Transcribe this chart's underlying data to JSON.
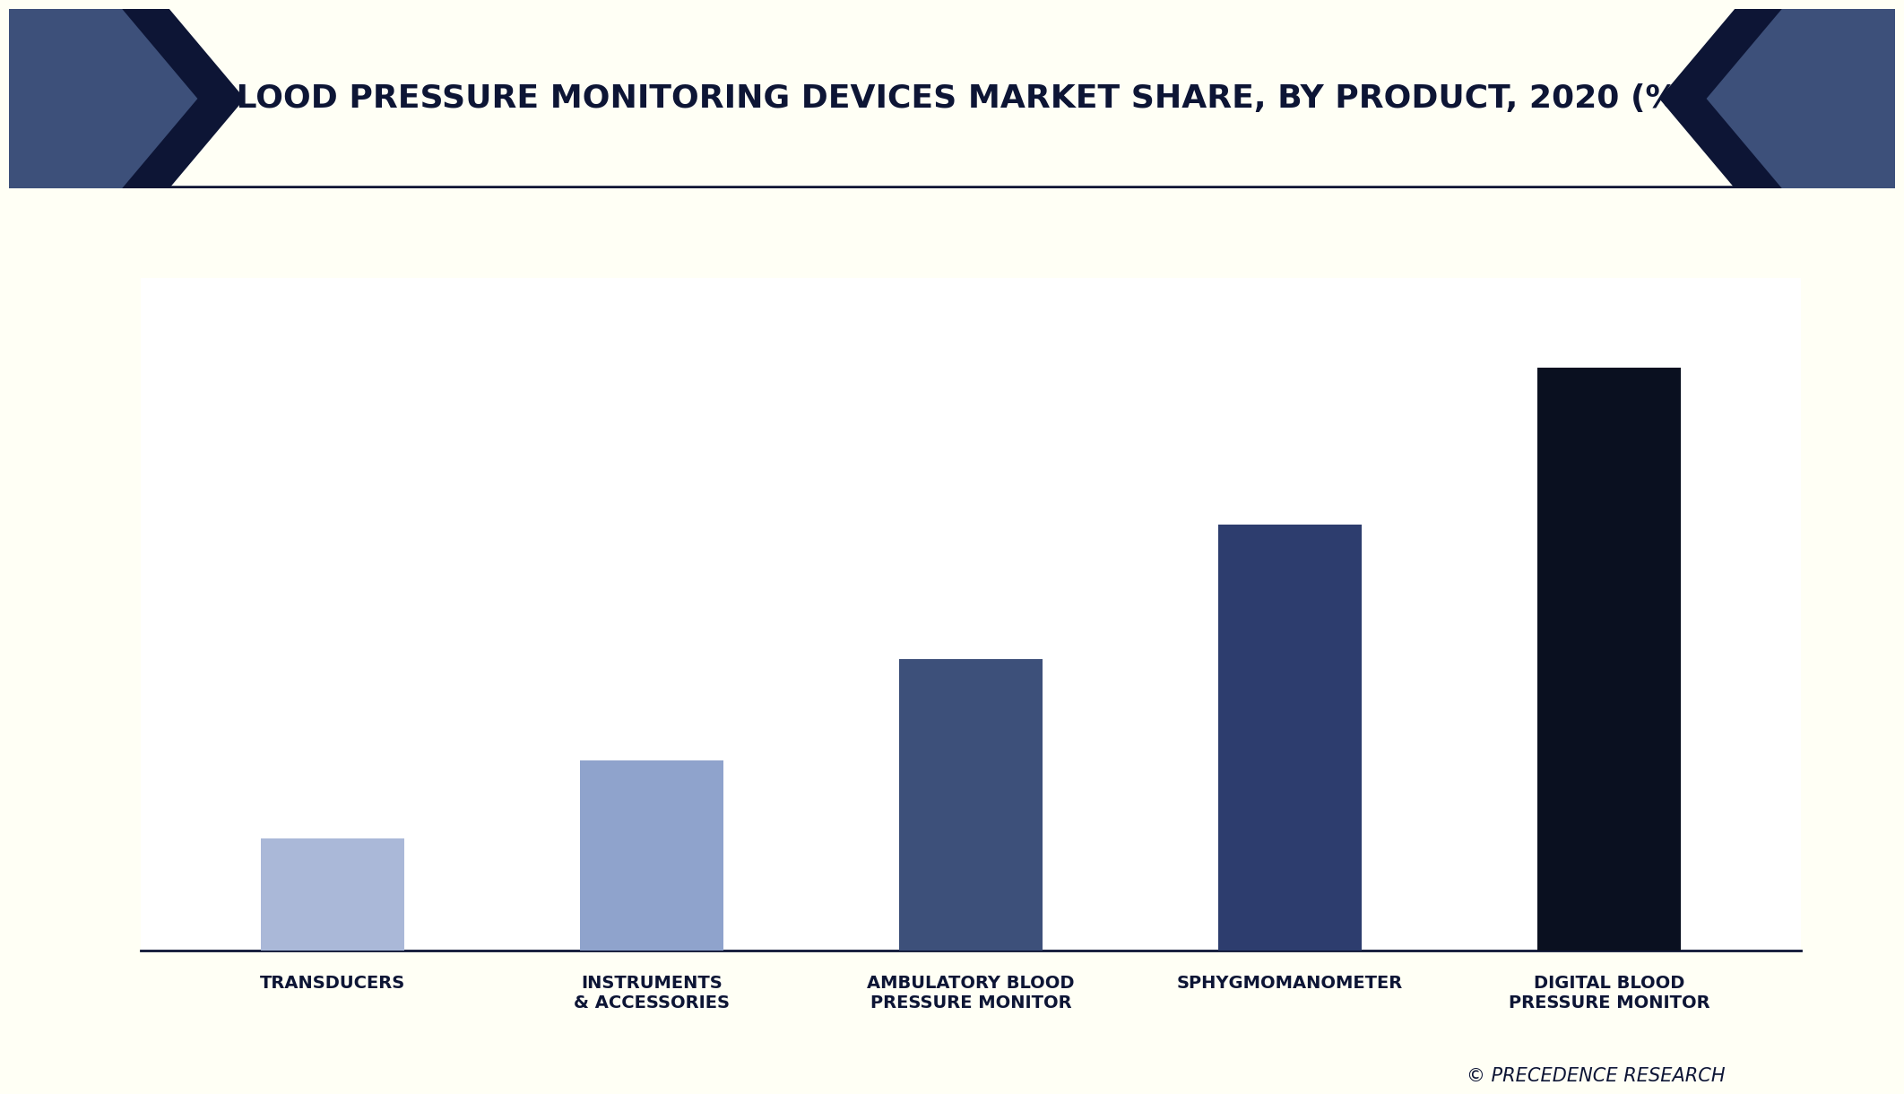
{
  "title": "BLOOD PRESSURE MONITORING DEVICES MARKET SHARE, BY PRODUCT, 2020 (%)",
  "categories": [
    "TRANSDUCERS",
    "INSTRUMENTS\n& ACCESSORIES",
    "AMBULATORY BLOOD\nPRESSURE MONITOR",
    "SPHYGMOMANOMETER",
    "DIGITAL BLOOD\nPRESSURE MONITOR"
  ],
  "values": [
    10,
    17,
    26,
    38,
    52
  ],
  "bar_colors": [
    "#aab8d8",
    "#8fa3cc",
    "#3d507a",
    "#2d3d6e",
    "#0a1020"
  ],
  "background_color": "#fffff5",
  "plot_bg_color": "#ffffff",
  "title_bg_color": "#ffffff",
  "title_text_color": "#0d1535",
  "xlabel_color": "#0d1535",
  "bottom_line_color": "#0d1535",
  "chevron_dark": "#0d1535",
  "chevron_mid": "#3d507a",
  "watermark": "© PRECEDENCE RESEARCH",
  "ylim": [
    0,
    60
  ],
  "title_fontsize": 26,
  "label_fontsize": 14,
  "watermark_fontsize": 15
}
